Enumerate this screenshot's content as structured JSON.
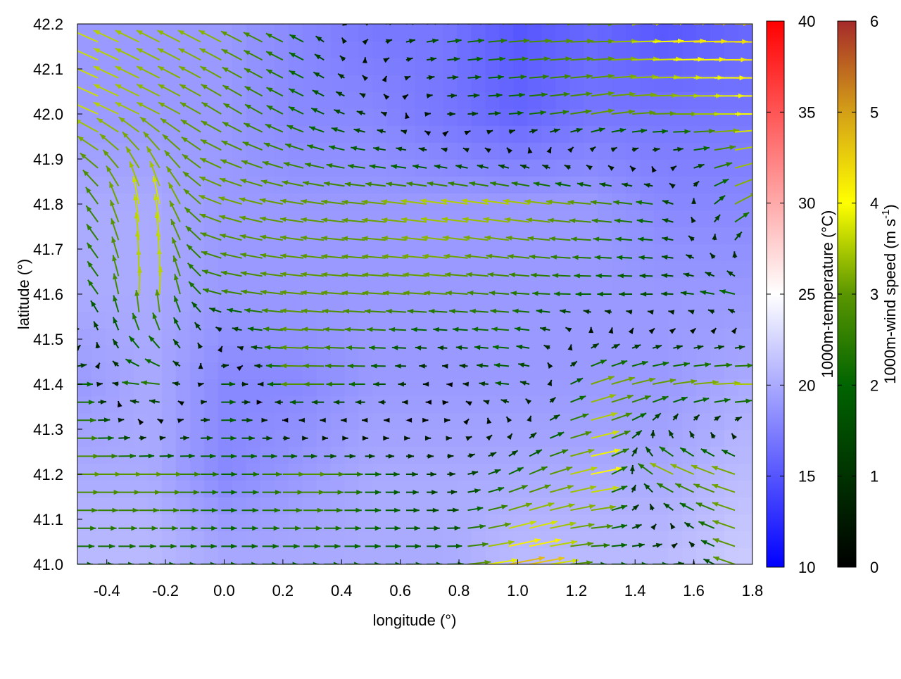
{
  "chart_data": {
    "type": "heatmap",
    "xlabel": "longitude (°)",
    "ylabel": "latitude (°)",
    "xlim": [
      -0.5,
      1.8
    ],
    "ylim": [
      41.0,
      42.2
    ],
    "xticks": [
      "-0.4",
      "-0.2",
      "0.0",
      "0.2",
      "0.4",
      "0.6",
      "0.8",
      "1.0",
      "1.2",
      "1.4",
      "1.6",
      "1.8"
    ],
    "yticks": [
      "41.0",
      "41.1",
      "41.2",
      "41.3",
      "41.4",
      "41.5",
      "41.6",
      "41.7",
      "41.8",
      "41.9",
      "42.0",
      "42.1",
      "42.2"
    ],
    "grid": false,
    "colorbars": [
      {
        "label": "1000m-temperature (°C)",
        "range": [
          10,
          40
        ],
        "ticks": [
          "10",
          "15",
          "20",
          "25",
          "30",
          "35",
          "40"
        ],
        "colors": [
          "#0000ff",
          "#ffffff",
          "#ff0000"
        ]
      },
      {
        "label": "1000m-wind speed (m s-1)",
        "label_main": "1000m-wind speed (m s",
        "label_sup": "-1",
        "label_end": ")",
        "range": [
          0,
          6
        ],
        "ticks": [
          "0",
          "1",
          "2",
          "3",
          "4",
          "5",
          "6"
        ],
        "colors": [
          "#000000",
          "#006400",
          "#5a9600",
          "#ffff00",
          "#d4a017",
          "#a52a2a"
        ]
      }
    ],
    "grid_lon": [
      -0.5,
      -0.25,
      0,
      0.25,
      0.5,
      0.75,
      1.0,
      1.25,
      1.5,
      1.75
    ],
    "grid_lat": [
      42.2,
      42.0,
      41.8,
      41.6,
      41.4,
      41.2,
      41.0
    ],
    "temperature": [
      [
        19,
        19,
        19,
        18,
        17,
        17,
        15,
        16,
        15,
        16
      ],
      [
        19,
        19,
        19,
        18,
        18,
        17,
        16,
        17,
        17,
        17
      ],
      [
        20,
        20,
        19,
        19,
        19,
        19,
        19,
        19,
        18,
        18
      ],
      [
        20,
        20,
        19,
        19,
        19,
        19,
        19,
        19,
        19,
        19
      ],
      [
        19,
        20,
        18,
        18,
        19,
        19,
        19,
        19,
        19,
        20
      ],
      [
        20,
        20,
        18,
        19,
        20,
        20,
        20,
        20,
        20,
        21
      ],
      [
        21,
        21,
        20,
        20,
        20,
        20,
        21,
        21,
        21,
        22
      ]
    ],
    "wind_uv": [
      [
        [
          -3.5,
          1.5
        ],
        [
          -3,
          1.5
        ],
        [
          -3,
          1.5
        ],
        [
          -2,
          1
        ],
        [
          1,
          0.3
        ],
        [
          2,
          0.3
        ],
        [
          3,
          0.2
        ],
        [
          3,
          0
        ],
        [
          4.5,
          0.2
        ],
        [
          4.5,
          0
        ]
      ],
      [
        [
          -3.5,
          1.5
        ],
        [
          -3,
          1.5
        ],
        [
          -2.5,
          1.5
        ],
        [
          -2,
          1
        ],
        [
          -1,
          0.3
        ],
        [
          1,
          0
        ],
        [
          2,
          0.2
        ],
        [
          3,
          0.5
        ],
        [
          3,
          0
        ],
        [
          4,
          0
        ]
      ],
      [
        [
          -2,
          1.5
        ],
        [
          -0.5,
          4
        ],
        [
          -3,
          1
        ],
        [
          -3,
          0.5
        ],
        [
          -3,
          0.3
        ],
        [
          -3.5,
          0.5
        ],
        [
          -3.5,
          0.5
        ],
        [
          -3,
          0.3
        ],
        [
          -2,
          0.3
        ],
        [
          3,
          1.5
        ]
      ],
      [
        [
          -2,
          1
        ],
        [
          0.5,
          4
        ],
        [
          -2.5,
          0.5
        ],
        [
          -3,
          0.3
        ],
        [
          -3,
          0.2
        ],
        [
          -3,
          0.2
        ],
        [
          -2.5,
          0.2
        ],
        [
          -2,
          0
        ],
        [
          -1.5,
          0
        ],
        [
          -2,
          0.5
        ]
      ],
      [
        [
          2,
          0
        ],
        [
          -3,
          0.3
        ],
        [
          2,
          0
        ],
        [
          -3,
          0
        ],
        [
          -2,
          0
        ],
        [
          0,
          0
        ],
        [
          -2,
          0.2
        ],
        [
          3,
          1
        ],
        [
          3,
          0.5
        ],
        [
          3.5,
          0
        ]
      ],
      [
        [
          3,
          0
        ],
        [
          3,
          0
        ],
        [
          2,
          0
        ],
        [
          3,
          0
        ],
        [
          2,
          0
        ],
        [
          1,
          0
        ],
        [
          2,
          1
        ],
        [
          4,
          0.8
        ],
        [
          -3,
          1.5
        ],
        [
          -3,
          1
        ]
      ],
      [
        [
          2,
          0
        ],
        [
          2,
          0
        ],
        [
          2,
          0
        ],
        [
          2,
          0
        ],
        [
          2,
          0
        ],
        [
          2,
          0
        ],
        [
          5,
          1
        ],
        [
          2,
          0
        ],
        [
          2,
          0
        ],
        [
          -3,
          1
        ]
      ]
    ]
  }
}
